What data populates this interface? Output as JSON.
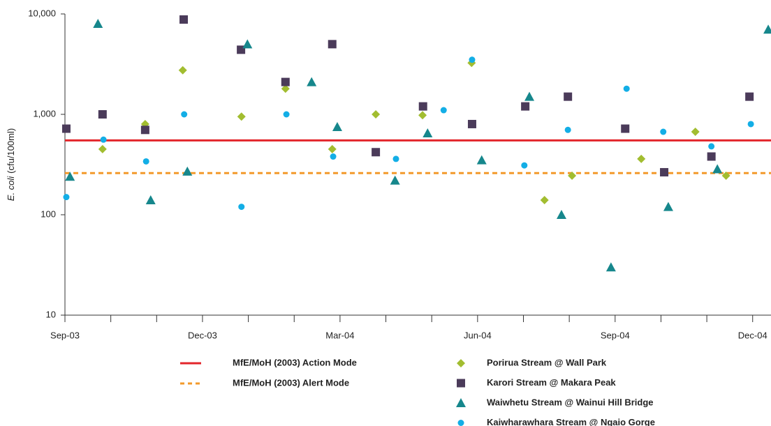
{
  "chart_data": {
    "type": "scatter",
    "y_label_parts": [
      "E. coli",
      "(cfu/100ml)"
    ],
    "log_y": true,
    "ylim": [
      10,
      10000
    ],
    "yticks": [
      {
        "value": 10000,
        "label": "10,000"
      },
      {
        "value": 1000,
        "label": "1,000"
      },
      100,
      10
    ],
    "xlim": [
      0,
      15.4
    ],
    "xticks": [
      {
        "value": 0,
        "label": "Sep-03"
      },
      {
        "value": 1,
        "label": null
      },
      {
        "value": 2,
        "label": null
      },
      {
        "value": 3,
        "label": "Dec-03"
      },
      {
        "value": 4,
        "label": null
      },
      {
        "value": 5,
        "label": null
      },
      {
        "value": 6,
        "label": "Mar-04"
      },
      {
        "value": 7,
        "label": null
      },
      {
        "value": 8,
        "label": null
      },
      {
        "value": 9,
        "label": "Jun-04"
      },
      {
        "value": 10,
        "label": null
      },
      {
        "value": 11,
        "label": null
      },
      {
        "value": 12,
        "label": "Sep-04"
      },
      {
        "value": 13,
        "label": null
      },
      {
        "value": 14,
        "label": null
      },
      {
        "value": 15,
        "label": "Dec-04"
      }
    ],
    "reference_lines": [
      {
        "name": "MfE/MoH (2003) Action Mode",
        "value": 550,
        "color": "#e3262b",
        "style": "solid"
      },
      {
        "name": "MfE/MoH (2003) Alert Mode",
        "value": 260,
        "color": "#f39a2b",
        "style": "dashed"
      }
    ],
    "series": [
      {
        "name": "Porirua Stream @ Wall Park",
        "color": "#a2bd30",
        "marker": "diamond",
        "x": [
          0.82,
          1.75,
          2.57,
          3.85,
          4.81,
          5.83,
          6.78,
          7.8,
          8.87,
          10.46,
          11.06,
          12.57,
          13.75,
          14.42
        ],
        "values": [
          450,
          800,
          2750,
          950,
          1800,
          450,
          1000,
          980,
          3250,
          140,
          245,
          360,
          670,
          245
        ]
      },
      {
        "name": "Karori Stream @ Makara Peak",
        "color": "#4b3b5a",
        "marker": "square",
        "x": [
          0.03,
          0.82,
          1.75,
          2.59,
          3.84,
          4.81,
          5.83,
          6.78,
          7.81,
          8.88,
          10.04,
          10.97,
          12.22,
          13.07,
          14.1,
          14.93
        ],
        "values": [
          720,
          1000,
          700,
          8800,
          4400,
          2100,
          5000,
          420,
          1200,
          800,
          1200,
          1500,
          720,
          265,
          380,
          1500
        ]
      },
      {
        "name": "Waiwhetu Stream @ Wainui Hill Bridge",
        "color": "#16878c",
        "marker": "triangle",
        "x": [
          0.11,
          0.72,
          1.87,
          2.67,
          3.98,
          5.38,
          5.94,
          7.2,
          7.91,
          9.09,
          10.13,
          10.83,
          11.91,
          13.16,
          14.23,
          15.34
        ],
        "values": [
          240,
          8000,
          140,
          270,
          5000,
          2100,
          750,
          220,
          650,
          350,
          1500,
          100,
          30,
          120,
          285,
          7000
        ]
      },
      {
        "name": "Kaiwharawhara Stream @ Ngaio Gorge",
        "color": "#13aee6",
        "marker": "circle",
        "x": [
          0.03,
          0.84,
          1.77,
          2.6,
          3.85,
          4.83,
          5.85,
          7.22,
          8.26,
          8.88,
          10.02,
          10.97,
          12.25,
          13.05,
          14.1,
          14.96
        ],
        "values": [
          150,
          560,
          340,
          1000,
          120,
          1000,
          380,
          360,
          1100,
          3500,
          310,
          700,
          1800,
          670,
          480,
          800
        ]
      }
    ]
  }
}
